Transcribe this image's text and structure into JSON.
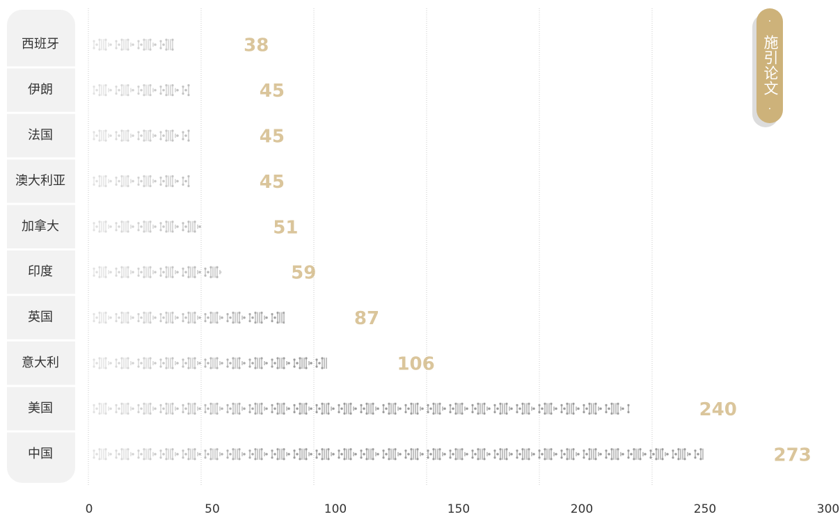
{
  "chart_data": {
    "type": "bar",
    "orientation": "horizontal",
    "categories": [
      "西班牙",
      "伊朗",
      "法国",
      "澳大利亚",
      "加拿大",
      "印度",
      "英国",
      "意大利",
      "美国",
      "中国"
    ],
    "series": [
      {
        "name": "施引论文",
        "color": "#cdb27a",
        "values": [
          38,
          45,
          45,
          45,
          51,
          59,
          87,
          106,
          240,
          273
        ]
      }
    ],
    "xlim": [
      0,
      300
    ],
    "xticks": [
      0,
      50,
      100,
      150,
      200,
      250,
      300
    ],
    "grid": true,
    "legend": "top-right"
  }
}
